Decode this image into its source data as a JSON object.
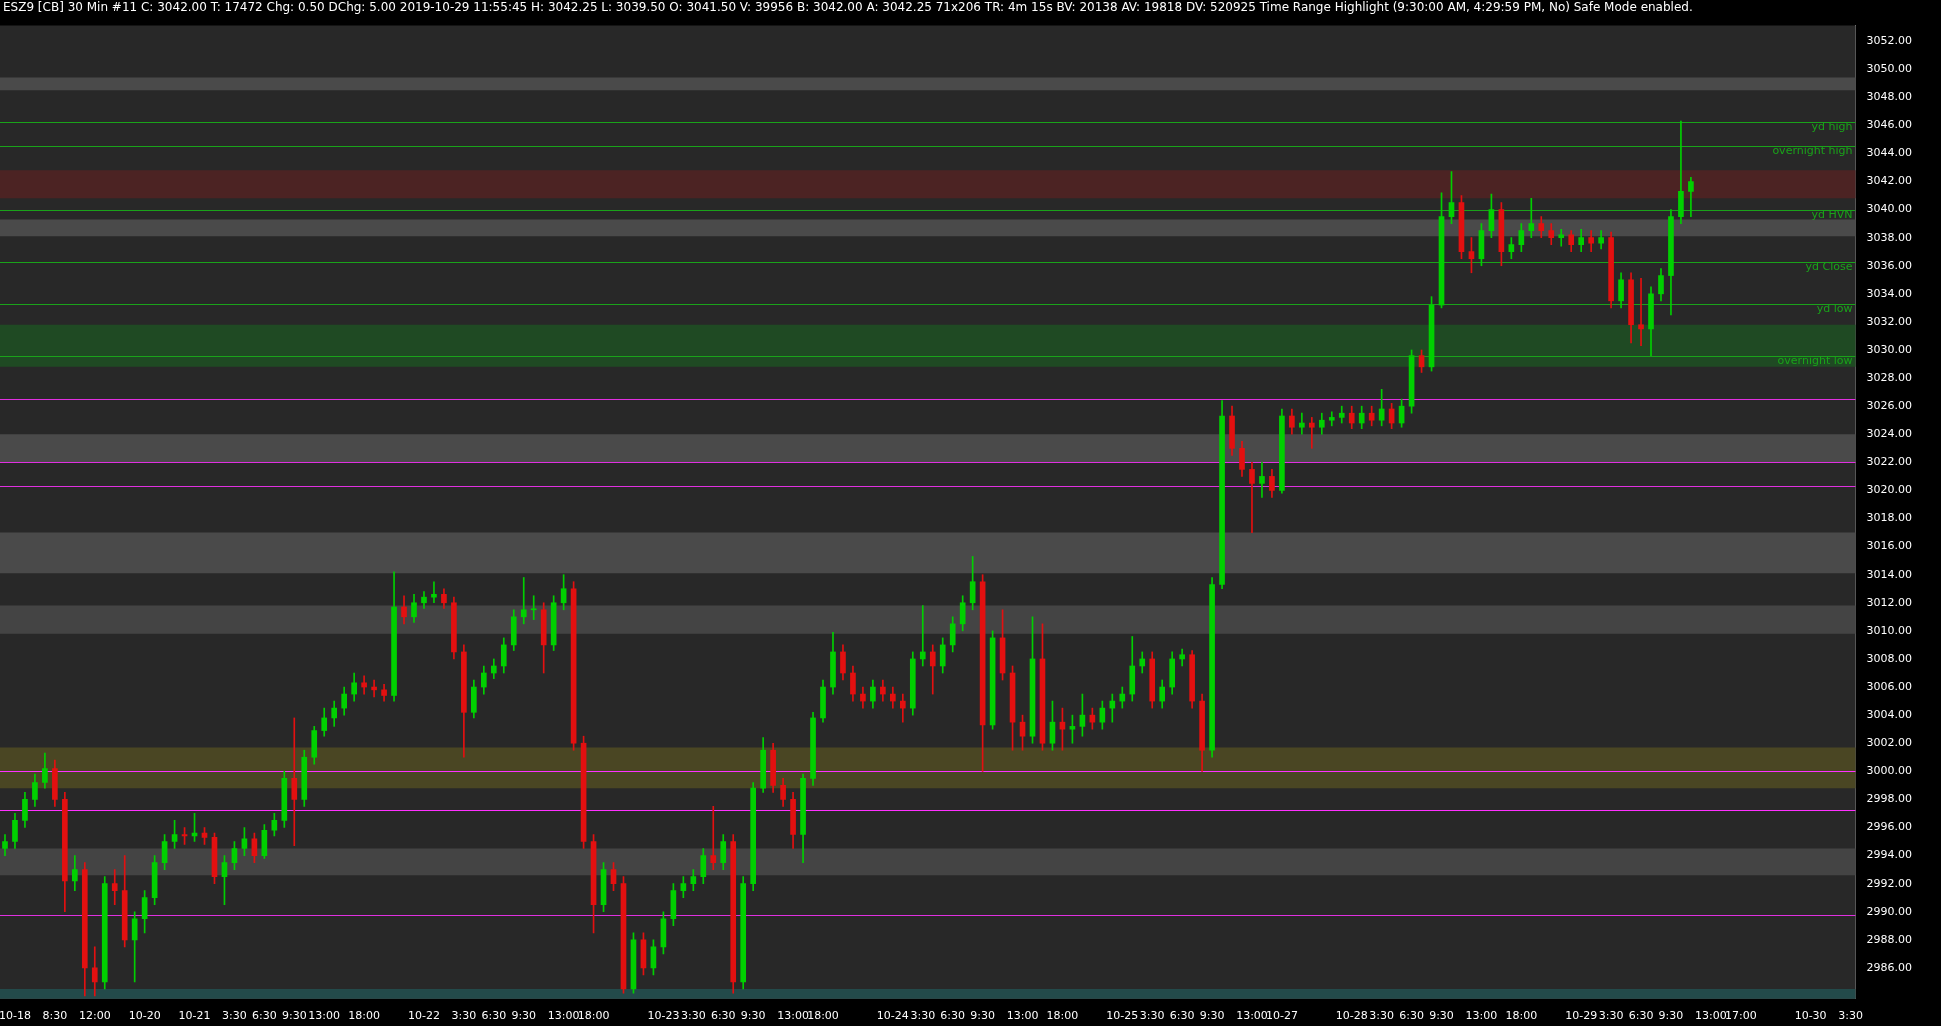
{
  "chart_data": {
    "type": "candlestick",
    "title": "ESZ9 [CB]  30 Min  #11 C: 3042.00 T: 17472 Chg: 0.50 DChg: 5.00 2019-10-29 11:55:45 H: 3042.25 L: 3039.50 O: 3041.50 V: 39956 B: 3042.00 A: 3042.25 71x206 TR: 4m 15s BV: 20138 AV: 19818 DV: 520925 Time Range Highlight  (9:30:00 AM, 4:29:59 PM, No)  Safe Mode enabled.",
    "categories": [
      null,
      "10-18",
      null,
      null,
      null,
      "8:30",
      null,
      null,
      null,
      "12:00",
      null,
      null,
      null,
      null,
      "10-20",
      null,
      null,
      null,
      null,
      "10-21",
      null,
      null,
      null,
      "3:30",
      null,
      null,
      "6:30",
      null,
      null,
      "9:30",
      null,
      null,
      "13:00",
      null,
      null,
      null,
      "18:00",
      null,
      null,
      null,
      null,
      null,
      "10-22",
      null,
      null,
      null,
      "3:30",
      null,
      null,
      "6:30",
      null,
      null,
      "9:30",
      null,
      null,
      null,
      "13:00",
      null,
      null,
      "18:00",
      null,
      null,
      null,
      null,
      null,
      null,
      "10-23",
      null,
      null,
      "3:30",
      null,
      null,
      "6:30",
      null,
      null,
      "9:30",
      null,
      null,
      null,
      "13:00",
      null,
      null,
      "18:00",
      null,
      null,
      null,
      null,
      null,
      null,
      "10-24",
      null,
      null,
      "3:30",
      null,
      null,
      "6:30",
      null,
      null,
      "9:30",
      null,
      null,
      null,
      "13:00",
      null,
      null,
      null,
      "18:00",
      null,
      null,
      null,
      null,
      null,
      "10-25",
      null,
      null,
      "3:30",
      null,
      null,
      "6:30",
      null,
      null,
      "9:30",
      null,
      null,
      null,
      "13:00",
      null,
      null,
      "10-27",
      null,
      null,
      null,
      null,
      null,
      null,
      "10-28",
      null,
      null,
      "3:30",
      null,
      null,
      "6:30",
      null,
      null,
      "9:30",
      null,
      null,
      null,
      "13:00",
      null,
      null,
      null,
      "18:00",
      null,
      null,
      null,
      null,
      null,
      "10-29",
      null,
      null,
      "3:30",
      null,
      null,
      "6:30",
      null,
      null,
      "9:30",
      null,
      null,
      null,
      "13:00",
      null,
      null,
      "17:00",
      null,
      null,
      null,
      null,
      null,
      null,
      "10-30",
      null,
      null,
      null,
      "3:30"
    ],
    "ohlc": [
      [
        2994.5,
        2995.5,
        2994,
        2995
      ],
      [
        2995,
        2997,
        2994.5,
        2996.5
      ],
      [
        2996.5,
        2998.5,
        2996,
        2998
      ],
      [
        2998,
        2999.8,
        2997.5,
        2999.2
      ],
      [
        2999.2,
        3001.3,
        2998.8,
        3000.2
      ],
      [
        3000.2,
        3000.8,
        2997.5,
        2998
      ],
      [
        2998,
        2998.5,
        2990,
        2992.2
      ],
      [
        2992.2,
        2994,
        2991.5,
        2993
      ],
      [
        2993,
        2993.5,
        2984,
        2986
      ],
      [
        2986,
        2987.5,
        2984,
        2985
      ],
      [
        2985,
        2992.5,
        2984.5,
        2992
      ],
      [
        2992,
        2993,
        2990.5,
        2991.5
      ],
      [
        2991.5,
        2994,
        2987.5,
        2988
      ],
      [
        2988,
        2990,
        2985,
        2989.5
      ],
      [
        2989.5,
        2991.5,
        2988.5,
        2991
      ],
      [
        2991,
        2994,
        2990.5,
        2993.5
      ],
      [
        2993.5,
        2995.5,
        2993,
        2995
      ],
      [
        2995,
        2996.5,
        2994.5,
        2995.5
      ],
      [
        2995.5,
        2996,
        2994.8,
        2995.4
      ],
      [
        2995.4,
        2997,
        2995,
        2995.6
      ],
      [
        2995.6,
        2996,
        2994.8,
        2995.3
      ],
      [
        2995.3,
        2995.6,
        2992,
        2992.5
      ],
      [
        2992.5,
        2994,
        2990.5,
        2993.5
      ],
      [
        2993.5,
        2995,
        2993,
        2994.5
      ],
      [
        2994.5,
        2996,
        2994,
        2995.2
      ],
      [
        2995.2,
        2995.6,
        2993.5,
        2994
      ],
      [
        2994,
        2996.2,
        2993.8,
        2995.8
      ],
      [
        2995.8,
        2997,
        2995.4,
        2996.5
      ],
      [
        2996.5,
        3000,
        2996,
        2999.5
      ],
      [
        2999.5,
        3003.8,
        2994.7,
        2998
      ],
      [
        2998,
        3001.5,
        2997.5,
        3001
      ],
      [
        3001,
        3003.2,
        3000.5,
        3002.9
      ],
      [
        3002.9,
        3004.5,
        3002.5,
        3003.8
      ],
      [
        3003.8,
        3005,
        3003.2,
        3004.5
      ],
      [
        3004.5,
        3006,
        3004,
        3005.5
      ],
      [
        3005.5,
        3007,
        3005,
        3006.3
      ],
      [
        3006.3,
        3006.8,
        3005.5,
        3006
      ],
      [
        3006,
        3006.5,
        3005.3,
        3005.8
      ],
      [
        3005.8,
        3006.2,
        3005,
        3005.4
      ],
      [
        3005.4,
        3014.2,
        3005,
        3011.7
      ],
      [
        3011.7,
        3012.5,
        3010.5,
        3011
      ],
      [
        3011,
        3012.6,
        3010.6,
        3012
      ],
      [
        3012,
        3012.8,
        3011.6,
        3012.4
      ],
      [
        3012.4,
        3013.5,
        3012,
        3012.6
      ],
      [
        3012.6,
        3013,
        3011.6,
        3012
      ],
      [
        3012,
        3012.4,
        3008,
        3008.5
      ],
      [
        3008.5,
        3009,
        3001,
        3004.2
      ],
      [
        3004.2,
        3006.5,
        3003.8,
        3006
      ],
      [
        3006,
        3007.5,
        3005.5,
        3007
      ],
      [
        3007,
        3008,
        3006.6,
        3007.5
      ],
      [
        3007.5,
        3009.5,
        3007,
        3009
      ],
      [
        3009,
        3011.5,
        3008.6,
        3011
      ],
      [
        3011,
        3013.8,
        3010.5,
        3011.5
      ],
      [
        3011.5,
        3012.5,
        3010.8,
        3011.5
      ],
      [
        3011.5,
        3012,
        3007,
        3009
      ],
      [
        3009,
        3012.5,
        3008.6,
        3012
      ],
      [
        3012,
        3014,
        3011.5,
        3013
      ],
      [
        3013,
        3013.5,
        3001.5,
        3002
      ],
      [
        3002,
        3002.5,
        2994.5,
        2995
      ],
      [
        2995,
        2995.5,
        2988.5,
        2990.5
      ],
      [
        2990.5,
        2993.5,
        2990,
        2993
      ],
      [
        2993,
        2993.5,
        2991.5,
        2992
      ],
      [
        2992,
        2992.5,
        2984.2,
        2984.5
      ],
      [
        2984.5,
        2988.5,
        2984.2,
        2988
      ],
      [
        2988,
        2988.5,
        2985.5,
        2986
      ],
      [
        2986,
        2988,
        2985.5,
        2987.5
      ],
      [
        2987.5,
        2990,
        2987,
        2989.5
      ],
      [
        2989.5,
        2992,
        2989,
        2991.5
      ],
      [
        2991.5,
        2992.5,
        2991,
        2992
      ],
      [
        2992,
        2993,
        2991.5,
        2992.5
      ],
      [
        2992.5,
        2994.5,
        2992,
        2994
      ],
      [
        2994,
        2997.5,
        2993,
        2993.5
      ],
      [
        2993.5,
        2995.5,
        2993,
        2995
      ],
      [
        2995,
        2995.5,
        2984.2,
        2985
      ],
      [
        2985,
        2992.5,
        2984.5,
        2992
      ],
      [
        2992,
        2999.2,
        2991.5,
        2998.8
      ],
      [
        2998.8,
        3002.4,
        2998.5,
        3001.5
      ],
      [
        3001.5,
        3002,
        2998.5,
        2999
      ],
      [
        2999,
        2999.5,
        2997.5,
        2998
      ],
      [
        2998,
        2998.5,
        2994.5,
        2995.5
      ],
      [
        2995.5,
        2999.8,
        2993.5,
        2999.5
      ],
      [
        2999.5,
        3004.2,
        2999,
        3003.8
      ],
      [
        3003.8,
        3006.5,
        3003.5,
        3006
      ],
      [
        3006,
        3009.9,
        3005.5,
        3008.5
      ],
      [
        3008.5,
        3009,
        3006.5,
        3007
      ],
      [
        3007,
        3007.5,
        3005,
        3005.5
      ],
      [
        3005.5,
        3006,
        3004.5,
        3005
      ],
      [
        3005,
        3006.5,
        3004.5,
        3006
      ],
      [
        3006,
        3006.5,
        3005,
        3005.5
      ],
      [
        3005.5,
        3006,
        3004.5,
        3005
      ],
      [
        3005,
        3005.5,
        3003.5,
        3004.5
      ],
      [
        3004.5,
        3008.5,
        3004,
        3008
      ],
      [
        3008,
        3011.8,
        3007.5,
        3008.5
      ],
      [
        3008.5,
        3009,
        3005.5,
        3007.5
      ],
      [
        3007.5,
        3009.5,
        3007,
        3009
      ],
      [
        3009,
        3011,
        3008.5,
        3010.5
      ],
      [
        3010.5,
        3012.5,
        3010,
        3012
      ],
      [
        3012,
        3015.3,
        3011.5,
        3013.5
      ],
      [
        3013.5,
        3014,
        3000,
        3003.3
      ],
      [
        3003.3,
        3010,
        3003,
        3009.5
      ],
      [
        3009.5,
        3011.5,
        3006.5,
        3007
      ],
      [
        3007,
        3007.5,
        3001.5,
        3003.5
      ],
      [
        3003.5,
        3004,
        3001.5,
        3002.5
      ],
      [
        3002.5,
        3011,
        3002,
        3008
      ],
      [
        3008,
        3010.5,
        3001.5,
        3002
      ],
      [
        3002,
        3005,
        3001.5,
        3003.5
      ],
      [
        3003.5,
        3004.5,
        3001.5,
        3003
      ],
      [
        3003,
        3004,
        3002,
        3003.2
      ],
      [
        3003.2,
        3005.5,
        3002.5,
        3004
      ],
      [
        3004,
        3004.5,
        3003,
        3003.5
      ],
      [
        3003.5,
        3005,
        3003,
        3004.5
      ],
      [
        3004.5,
        3005.5,
        3003.5,
        3005
      ],
      [
        3005,
        3006,
        3004.5,
        3005.5
      ],
      [
        3005.5,
        3009.6,
        3005,
        3007.5
      ],
      [
        3007.5,
        3008.5,
        3007,
        3008
      ],
      [
        3008,
        3008.5,
        3004.5,
        3005
      ],
      [
        3005,
        3006.5,
        3004.5,
        3006
      ],
      [
        3006,
        3008.5,
        3005.5,
        3008
      ],
      [
        3008,
        3008.7,
        3007.5,
        3008.3
      ],
      [
        3008.3,
        3008.6,
        3004.5,
        3005
      ],
      [
        3005,
        3005.5,
        3000,
        3001.5
      ],
      [
        3001.5,
        3013.8,
        3001,
        3013.3
      ],
      [
        3013.3,
        3026.4,
        3013,
        3025.3
      ],
      [
        3025.3,
        3026,
        3022.5,
        3023
      ],
      [
        3023,
        3023.5,
        3021,
        3021.5
      ],
      [
        3021.5,
        3022,
        3017,
        3020.5
      ],
      [
        3020.5,
        3022,
        3019.5,
        3021
      ],
      [
        3021,
        3021.5,
        3019.5,
        3020
      ],
      [
        3020,
        3025.8,
        3019.8,
        3025.3
      ],
      [
        3025.3,
        3025.8,
        3024,
        3024.5
      ],
      [
        3024.5,
        3025.5,
        3024,
        3024.8
      ],
      [
        3024.8,
        3025.2,
        3023,
        3024.5
      ],
      [
        3024.5,
        3025.5,
        3024,
        3025
      ],
      [
        3025,
        3025.6,
        3024.6,
        3025.2
      ],
      [
        3025.2,
        3026,
        3024.8,
        3025.5
      ],
      [
        3025.5,
        3026,
        3024.4,
        3024.8
      ],
      [
        3024.8,
        3026,
        3024.4,
        3025.5
      ],
      [
        3025.5,
        3026,
        3024.6,
        3025
      ],
      [
        3025,
        3027.2,
        3024.6,
        3025.8
      ],
      [
        3025.8,
        3026.2,
        3024.4,
        3024.8
      ],
      [
        3024.8,
        3026.5,
        3024.5,
        3026
      ],
      [
        3026,
        3030,
        3025.5,
        3029.6
      ],
      [
        3029.6,
        3030,
        3028.4,
        3028.8
      ],
      [
        3028.8,
        3033.8,
        3028.5,
        3033.2
      ],
      [
        3033.2,
        3041.2,
        3033,
        3039.5
      ],
      [
        3039.5,
        3042.7,
        3039,
        3040.5
      ],
      [
        3040.5,
        3041,
        3036.5,
        3037
      ],
      [
        3037,
        3038,
        3035.5,
        3036.5
      ],
      [
        3036.5,
        3039,
        3036,
        3038.5
      ],
      [
        3038.5,
        3041.1,
        3038,
        3040
      ],
      [
        3040,
        3040.5,
        3036,
        3037
      ],
      [
        3037,
        3038,
        3036.5,
        3037.5
      ],
      [
        3037.5,
        3039,
        3037,
        3038.5
      ],
      [
        3038.5,
        3040.8,
        3038,
        3039
      ],
      [
        3039,
        3039.5,
        3038,
        3038.5
      ],
      [
        3038.5,
        3039,
        3037.5,
        3038
      ],
      [
        3038,
        3038.6,
        3037.4,
        3038.2
      ],
      [
        3038.2,
        3038.5,
        3037,
        3037.5
      ],
      [
        3037.5,
        3038.6,
        3037,
        3038
      ],
      [
        3038,
        3038.5,
        3037,
        3037.6
      ],
      [
        3037.6,
        3038.5,
        3037.2,
        3038
      ],
      [
        3038,
        3038.4,
        3033,
        3033.5
      ],
      [
        3033.5,
        3035.5,
        3033,
        3035
      ],
      [
        3035,
        3035.5,
        3030.5,
        3031.8
      ],
      [
        3031.8,
        3035.1,
        3030.3,
        3031.5
      ],
      [
        3031.5,
        3034.5,
        3029.6,
        3034
      ],
      [
        3034,
        3035.8,
        3033.5,
        3035.3
      ],
      [
        3035.3,
        3040,
        3032.5,
        3039.5
      ],
      [
        3039.5,
        3046.3,
        3039,
        3041.3
      ],
      [
        3041.3,
        3042.3,
        3039.5,
        3042
      ],
      null,
      null,
      null,
      null,
      null,
      null,
      null,
      null,
      null,
      null,
      null,
      null,
      null,
      null,
      null,
      null
    ],
    "ylim": [
      2983.8,
      3053.1
    ],
    "yticks": [
      {
        "value": 2986,
        "label": "2986.00"
      },
      {
        "value": 2988,
        "label": "2988.00"
      },
      {
        "value": 2990,
        "label": "2990.00"
      },
      {
        "value": 2992,
        "label": "2992.00"
      },
      {
        "value": 2994,
        "label": "2994.00"
      },
      {
        "value": 2996,
        "label": "2996.00"
      },
      {
        "value": 2998,
        "label": "2998.00"
      },
      {
        "value": 3000,
        "label": "3000.00"
      },
      {
        "value": 3002,
        "label": "3002.00"
      },
      {
        "value": 3004,
        "label": "3004.00"
      },
      {
        "value": 3006,
        "label": "3006.00"
      },
      {
        "value": 3008,
        "label": "3008.00"
      },
      {
        "value": 3010,
        "label": "3010.00"
      },
      {
        "value": 3012,
        "label": "3012.00"
      },
      {
        "value": 3014,
        "label": "3014.00"
      },
      {
        "value": 3016,
        "label": "3016.00"
      },
      {
        "value": 3018,
        "label": "3018.00"
      },
      {
        "value": 3020,
        "label": "3020.00"
      },
      {
        "value": 3022,
        "label": "3022.00"
      },
      {
        "value": 3024,
        "label": "3024.00"
      },
      {
        "value": 3026,
        "label": "3026.00"
      },
      {
        "value": 3028,
        "label": "3028.00"
      },
      {
        "value": 3030,
        "label": "3030.00"
      },
      {
        "value": 3032,
        "label": "3032.00"
      },
      {
        "value": 3034,
        "label": "3034.00"
      },
      {
        "value": 3036,
        "label": "3036.00"
      },
      {
        "value": 3038,
        "label": "3038.00"
      },
      {
        "value": 3040,
        "label": "3040.00"
      },
      {
        "value": 3042,
        "label": "3042.00"
      },
      {
        "value": 3044,
        "label": "3044.00"
      },
      {
        "value": 3046,
        "label": "3046.00"
      },
      {
        "value": 3048,
        "label": "3048.00"
      },
      {
        "value": 3050,
        "label": "3050.00"
      },
      {
        "value": 3052,
        "label": "3052.00"
      }
    ],
    "bands": [
      {
        "axis": "y",
        "from": 3048.5,
        "to": 3049.4,
        "color": "#4a4a4a"
      },
      {
        "axis": "y",
        "from": 3040.8,
        "to": 3042.8,
        "color": "#4c2323"
      },
      {
        "axis": "y",
        "from": 3038.1,
        "to": 3039.3,
        "color": "#4a4a4a"
      },
      {
        "axis": "y",
        "from": 3028.8,
        "to": 3031.8,
        "color": "#1f4a23"
      },
      {
        "axis": "y",
        "from": 3022.0,
        "to": 3024.0,
        "color": "#4a4a4a"
      },
      {
        "axis": "y",
        "from": 3014.1,
        "to": 3017.0,
        "color": "#4a4a4a"
      },
      {
        "axis": "y",
        "from": 3009.8,
        "to": 3011.8,
        "color": "#444444"
      },
      {
        "axis": "y",
        "from": 2998.8,
        "to": 3001.7,
        "color": "#4a4623"
      },
      {
        "axis": "y",
        "from": 2992.6,
        "to": 2994.5,
        "color": "#444444"
      },
      {
        "axis": "y",
        "from": 2983.8,
        "to": 2984.5,
        "color": "#234a4a"
      }
    ],
    "ref_lines": [
      {
        "axis": "y",
        "value": 3046.25,
        "label": "yd high",
        "color": "#1aa31a"
      },
      {
        "axis": "y",
        "value": 3044.5,
        "label": "overnight high",
        "color": "#1aa31a"
      },
      {
        "axis": "y",
        "value": 3040,
        "label": "yd HVN",
        "color": "#1aa31a"
      },
      {
        "axis": "y",
        "value": 3036.3,
        "label": "yd Close",
        "color": "#1aa31a"
      },
      {
        "axis": "y",
        "value": 3033.25,
        "label": "yd low",
        "color": "#1aa31a"
      },
      {
        "axis": "y",
        "value": 3029.6,
        "label": "overnight low",
        "color": "#1aa31a"
      },
      {
        "axis": "y",
        "value": 3026.5,
        "color": "#e030e0"
      },
      {
        "axis": "y",
        "value": 3022,
        "color": "#e030e0"
      },
      {
        "axis": "y",
        "value": 3020.3,
        "color": "#e030e0"
      },
      {
        "axis": "y",
        "value": 3000,
        "color": "#ff30ff"
      },
      {
        "axis": "y",
        "value": 2997.25,
        "color": "#ff30ff"
      },
      {
        "axis": "y",
        "value": 2989.75,
        "color": "#e030e0"
      }
    ]
  }
}
